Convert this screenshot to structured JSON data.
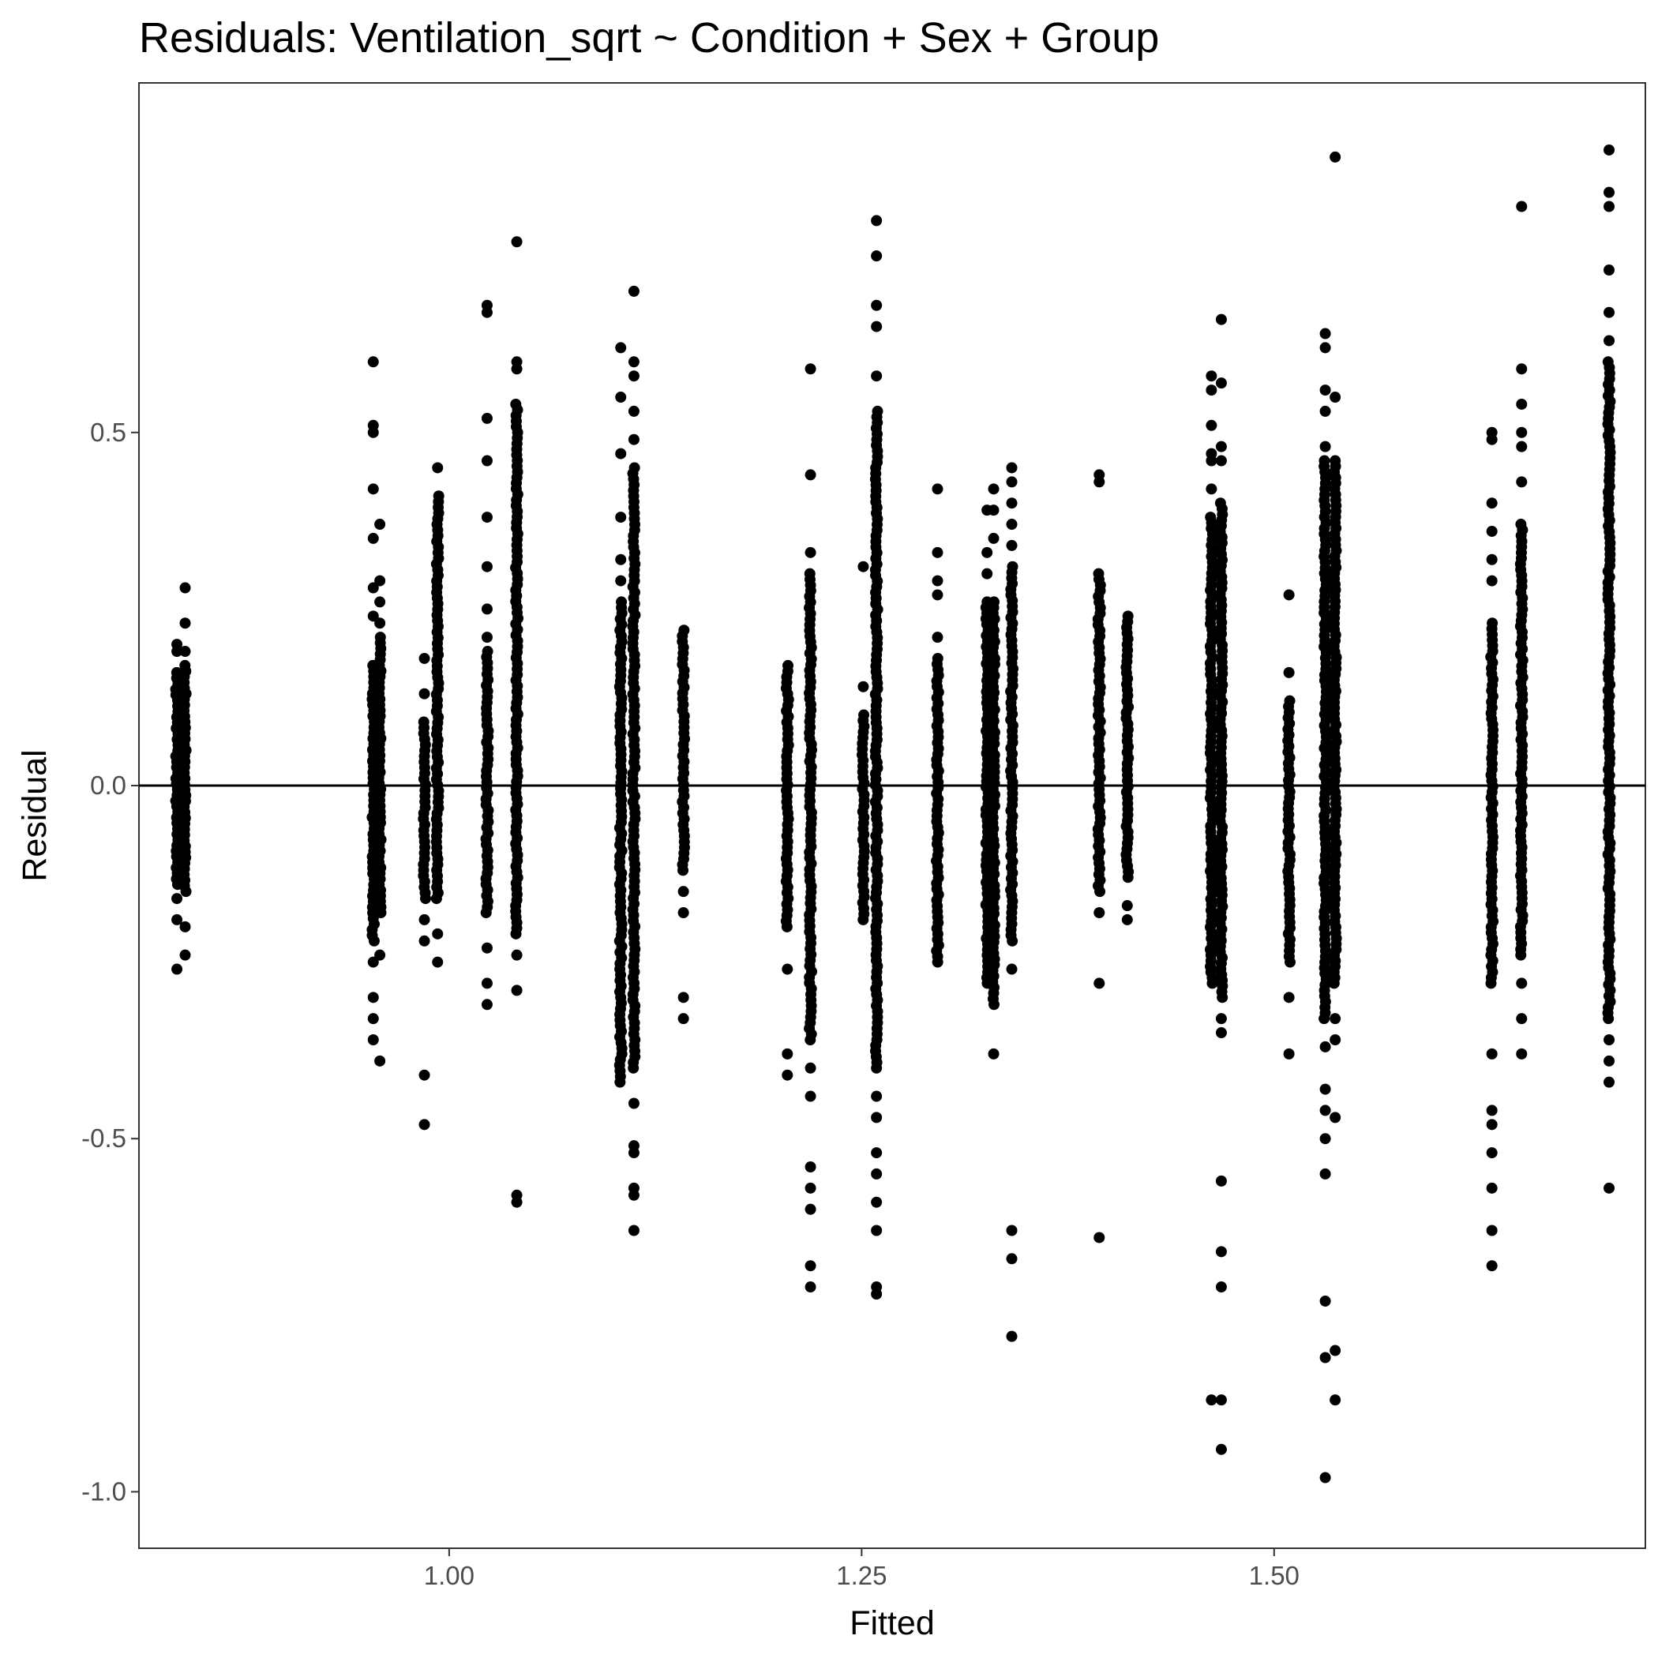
{
  "chart_data": {
    "type": "scatter",
    "title": "Residuals: Ventilation_sqrt ~ Condition + Sex + Group",
    "xlabel": "Fitted",
    "ylabel": "Residual",
    "xlim": [
      0.812,
      1.725
    ],
    "ylim": [
      -1.08,
      0.995
    ],
    "x_ticks": [
      1.0,
      1.25,
      1.5
    ],
    "x_tick_labels": [
      "1.00",
      "1.25",
      "1.50"
    ],
    "y_ticks": [
      -1.0,
      -0.5,
      0.0,
      0.5
    ],
    "y_tick_labels": [
      "-1.0",
      "-0.5",
      "0.0",
      "0.5"
    ],
    "grid": false,
    "reference_line": {
      "y": 0
    },
    "point_color": "#000000",
    "columns": [
      {
        "x": 0.835,
        "range": [
          -0.14,
          0.16
        ],
        "outliers": [
          0.2,
          0.19,
          -0.16,
          -0.19,
          -0.26
        ]
      },
      {
        "x": 0.84,
        "range": [
          -0.15,
          0.17
        ],
        "outliers": [
          0.28,
          0.23,
          0.19,
          -0.2,
          -0.24
        ]
      },
      {
        "x": 0.954,
        "range": [
          -0.22,
          0.17
        ],
        "outliers": [
          0.6,
          0.51,
          0.5,
          0.42,
          0.35,
          0.28,
          0.24,
          -0.25,
          -0.3,
          -0.33,
          -0.36
        ]
      },
      {
        "x": 0.958,
        "range": [
          -0.18,
          0.21
        ],
        "outliers": [
          0.37,
          0.29,
          0.26,
          0.23,
          -0.24,
          -0.39
        ]
      },
      {
        "x": 0.985,
        "range": [
          -0.16,
          0.09
        ],
        "outliers": [
          0.18,
          0.13,
          -0.19,
          -0.22,
          -0.41,
          -0.48
        ]
      },
      {
        "x": 0.993,
        "range": [
          -0.16,
          0.41
        ],
        "outliers": [
          0.45,
          -0.21,
          -0.25
        ]
      },
      {
        "x": 1.023,
        "range": [
          -0.18,
          0.19
        ],
        "outliers": [
          0.67,
          0.68,
          0.52,
          0.46,
          0.38,
          0.31,
          0.25,
          0.21,
          -0.23,
          -0.28,
          -0.31
        ]
      },
      {
        "x": 1.041,
        "range": [
          -0.21,
          0.54
        ],
        "outliers": [
          0.77,
          0.6,
          0.59,
          -0.24,
          -0.29,
          -0.58,
          -0.59
        ]
      },
      {
        "x": 1.104,
        "range": [
          -0.42,
          0.26
        ],
        "outliers": [
          0.62,
          0.55,
          0.47,
          0.38,
          0.32,
          0.29
        ]
      },
      {
        "x": 1.112,
        "range": [
          -0.4,
          0.45
        ],
        "outliers": [
          0.7,
          0.6,
          0.58,
          0.53,
          0.49,
          -0.45,
          -0.51,
          -0.58,
          -0.63,
          -0.57,
          -0.52
        ]
      },
      {
        "x": 1.142,
        "range": [
          -0.12,
          0.22
        ],
        "outliers": [
          -0.15,
          -0.18,
          -0.3,
          -0.33
        ]
      },
      {
        "x": 1.205,
        "range": [
          -0.2,
          0.17
        ],
        "outliers": [
          -0.26,
          -0.38,
          -0.41
        ]
      },
      {
        "x": 1.219,
        "range": [
          -0.36,
          0.3
        ],
        "outliers": [
          0.59,
          0.44,
          0.33,
          -0.4,
          -0.44,
          -0.54,
          -0.57,
          -0.6,
          -0.68,
          -0.71
        ]
      },
      {
        "x": 1.251,
        "range": [
          -0.19,
          0.1
        ],
        "outliers": [
          0.31,
          0.14
        ]
      },
      {
        "x": 1.259,
        "range": [
          -0.4,
          0.53
        ],
        "outliers": [
          0.8,
          0.75,
          0.68,
          0.65,
          0.58,
          -0.44,
          -0.47,
          -0.52,
          -0.55,
          -0.59,
          -0.63,
          -0.71,
          -0.72
        ]
      },
      {
        "x": 1.296,
        "range": [
          -0.25,
          0.18
        ],
        "outliers": [
          0.42,
          0.33,
          0.29,
          0.27,
          0.21
        ]
      },
      {
        "x": 1.326,
        "range": [
          -0.28,
          0.26
        ],
        "outliers": [
          0.39,
          0.33,
          0.3
        ]
      },
      {
        "x": 1.33,
        "range": [
          -0.31,
          0.26
        ],
        "outliers": [
          0.42,
          0.39,
          0.35,
          -0.38
        ]
      },
      {
        "x": 1.341,
        "range": [
          -0.22,
          0.31
        ],
        "outliers": [
          0.45,
          0.43,
          0.4,
          0.37,
          0.34,
          -0.26,
          -0.63,
          -0.67,
          -0.78
        ]
      },
      {
        "x": 1.394,
        "range": [
          -0.15,
          0.3
        ],
        "outliers": [
          0.44,
          0.43,
          -0.18,
          -0.28,
          -0.64
        ]
      },
      {
        "x": 1.411,
        "range": [
          -0.13,
          0.24
        ],
        "outliers": [
          -0.17,
          -0.19
        ]
      },
      {
        "x": 1.462,
        "range": [
          -0.28,
          0.38
        ],
        "outliers": [
          0.58,
          0.56,
          0.51,
          0.47,
          0.46,
          0.42,
          -0.87
        ]
      },
      {
        "x": 1.468,
        "range": [
          -0.3,
          0.4
        ],
        "outliers": [
          0.66,
          0.57,
          0.48,
          0.46,
          -0.33,
          -0.35,
          -0.56,
          -0.66,
          -0.71,
          -0.87,
          -0.94
        ]
      },
      {
        "x": 1.509,
        "range": [
          -0.25,
          0.12
        ],
        "outliers": [
          0.27,
          0.16,
          -0.3,
          -0.38
        ]
      },
      {
        "x": 1.531,
        "range": [
          -0.33,
          0.46
        ],
        "outliers": [
          0.64,
          0.62,
          0.56,
          0.53,
          0.48,
          -0.37,
          -0.43,
          -0.46,
          -0.5,
          -0.55,
          -0.73,
          -0.81,
          -0.98
        ]
      },
      {
        "x": 1.537,
        "range": [
          -0.28,
          0.46
        ],
        "outliers": [
          0.89,
          0.55,
          -0.33,
          -0.36,
          -0.47,
          -0.8,
          -0.87
        ]
      },
      {
        "x": 1.632,
        "range": [
          -0.28,
          0.23
        ],
        "outliers": [
          0.5,
          0.49,
          0.4,
          0.36,
          0.32,
          0.29,
          -0.38,
          -0.46,
          -0.48,
          -0.52,
          -0.57,
          -0.63,
          -0.68
        ]
      },
      {
        "x": 1.65,
        "range": [
          -0.24,
          0.37
        ],
        "outliers": [
          0.82,
          0.59,
          0.54,
          0.5,
          0.48,
          0.43,
          -0.28,
          -0.33,
          -0.38
        ]
      },
      {
        "x": 1.703,
        "range": [
          -0.33,
          0.6
        ],
        "outliers": [
          0.9,
          0.84,
          0.82,
          0.73,
          0.67,
          0.63,
          -0.36,
          -0.39,
          -0.42,
          -0.57
        ]
      }
    ]
  }
}
